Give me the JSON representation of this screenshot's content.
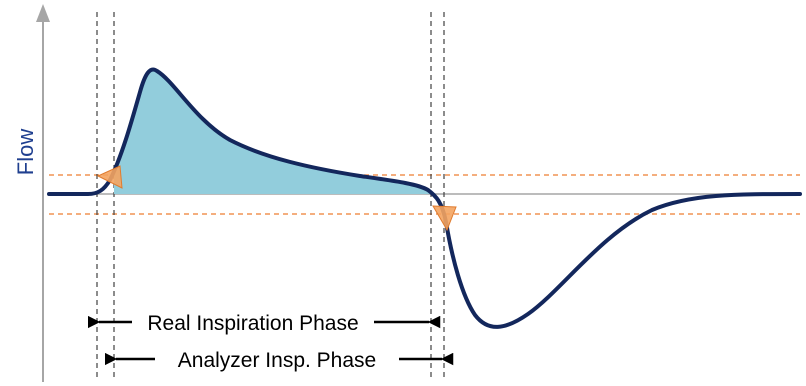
{
  "axis": {
    "ylabel": "Flow"
  },
  "phases": {
    "real": "Real Inspiration Phase",
    "analyzer": "Analyzer Insp. Phase"
  },
  "colors": {
    "curve": "#13275c",
    "fill": "#92cddc",
    "threshold": "#ed7d31",
    "marker": "#f4a460",
    "axis": "#a6a6a6",
    "ylabel": "#1f3f8f"
  }
}
